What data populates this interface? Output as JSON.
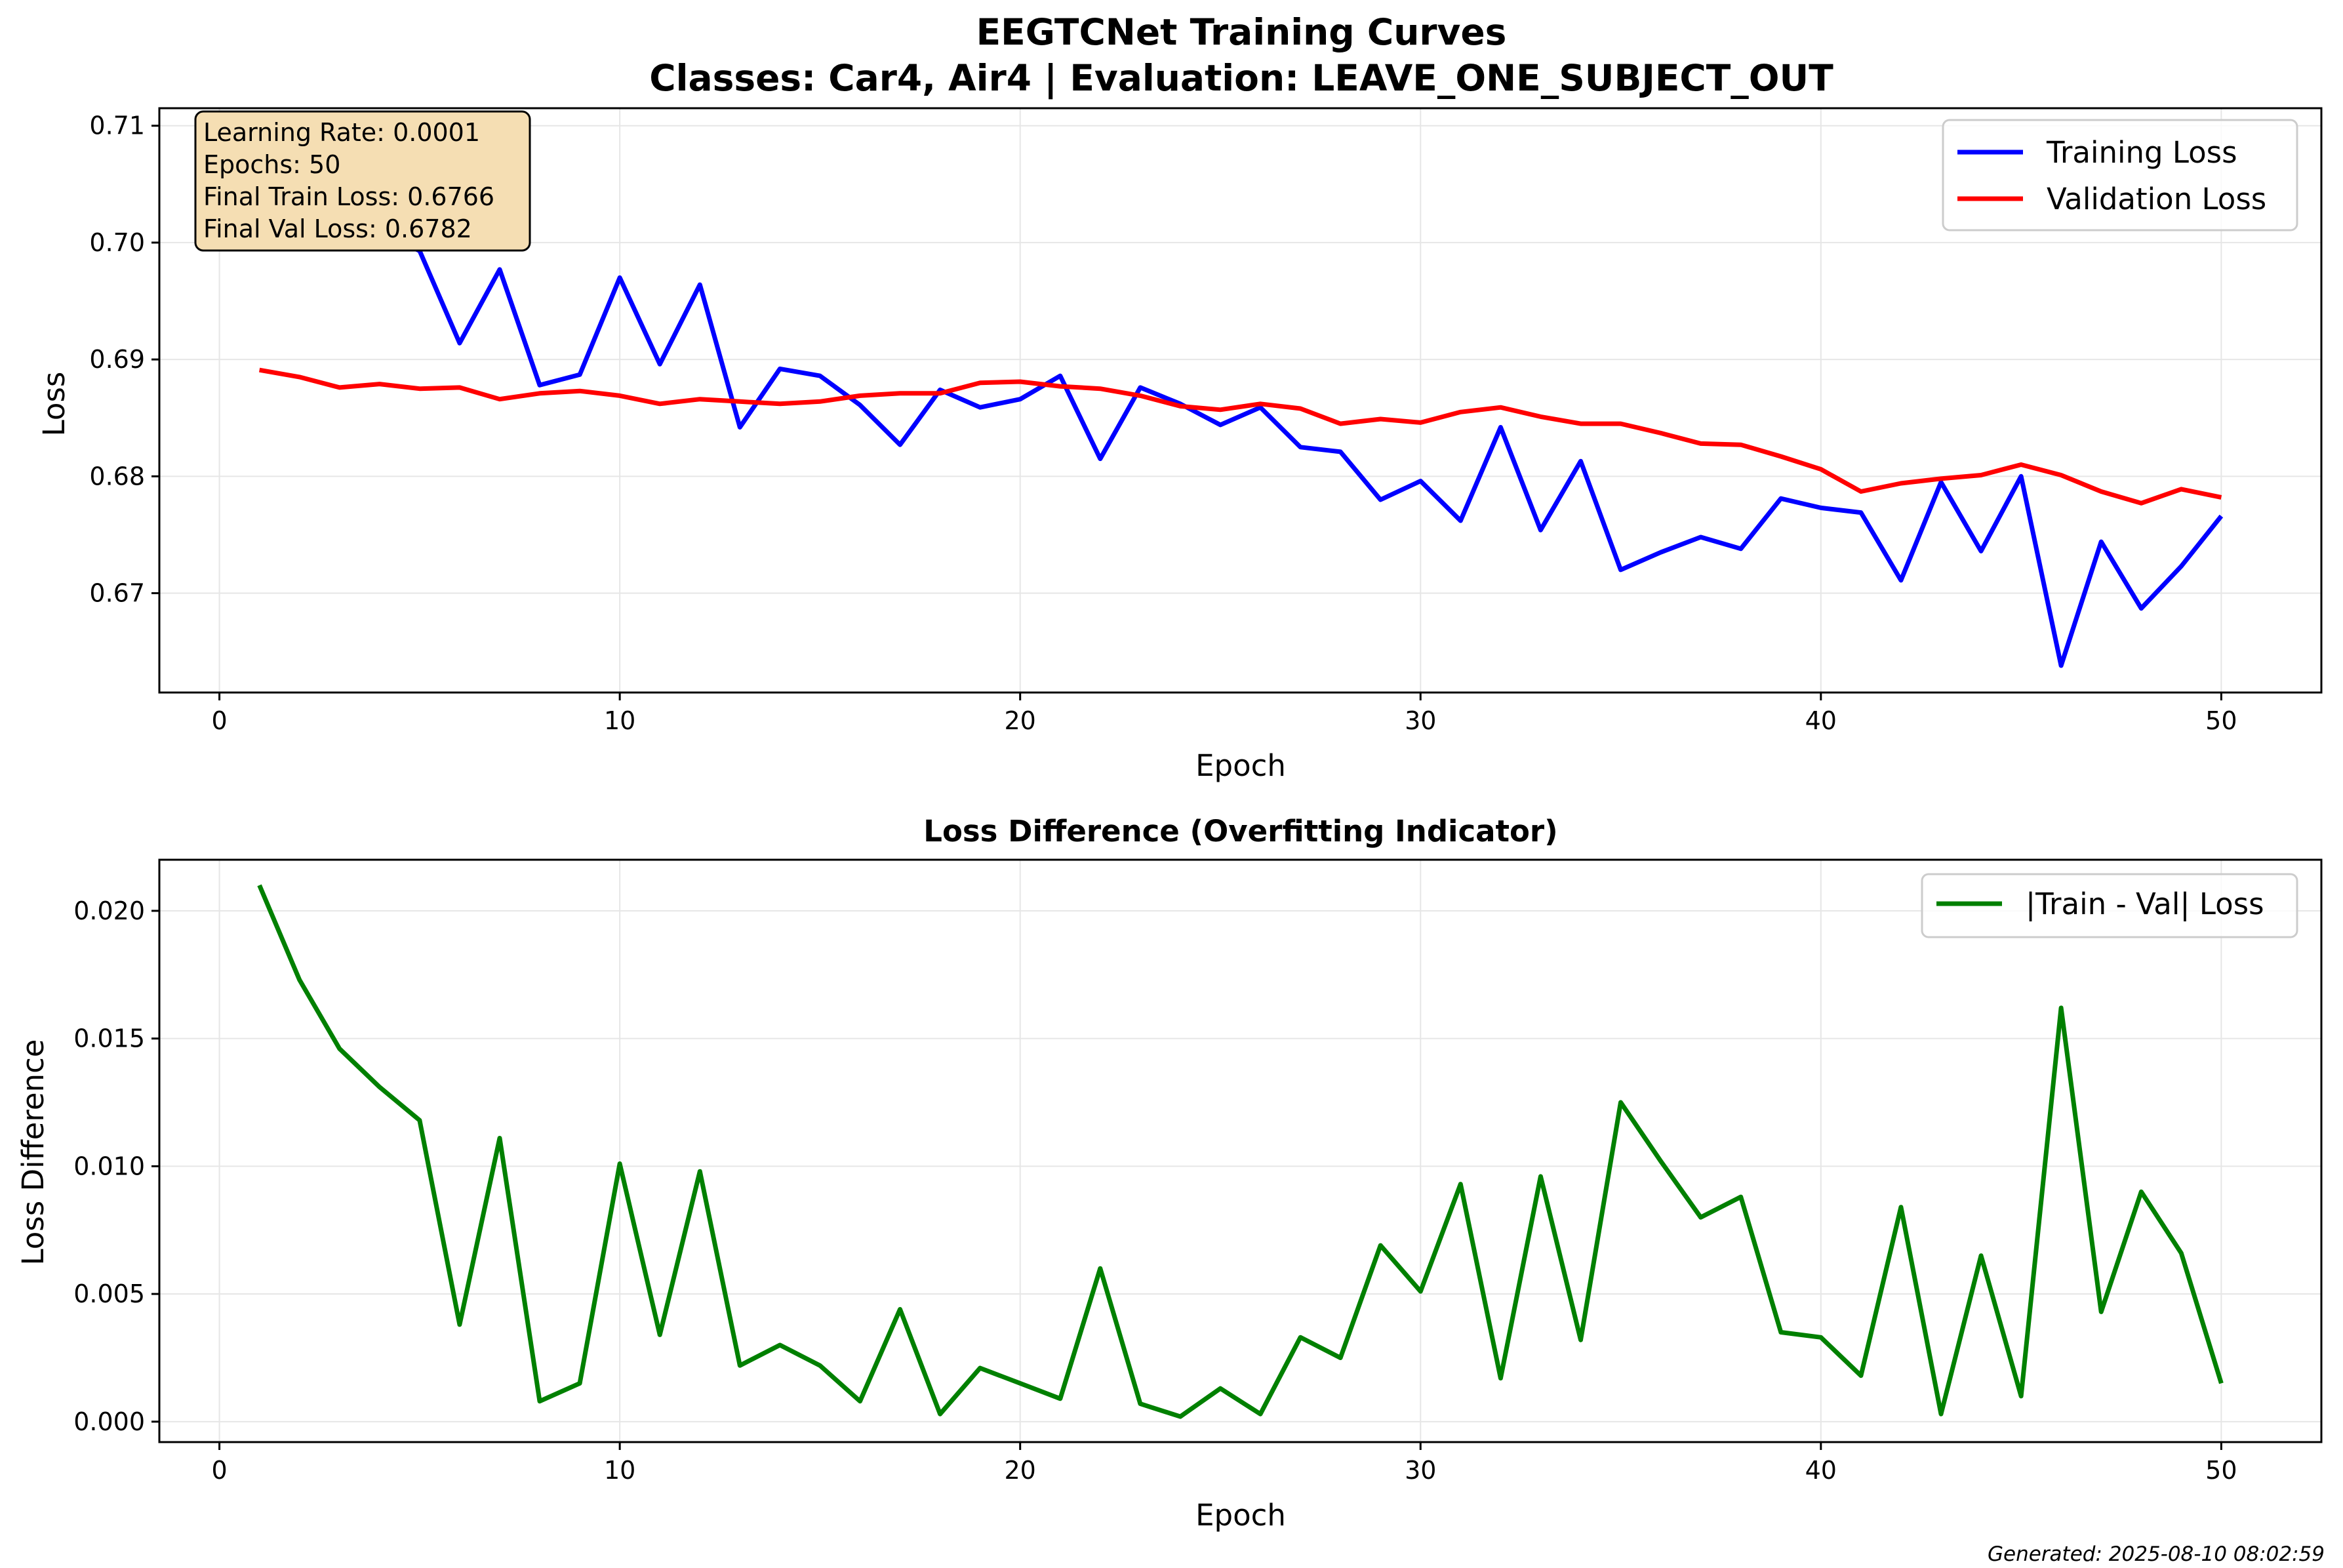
{
  "title": "EEGTCNet Training Curves",
  "subtitle": "Classes: Car4, Air4 | Evaluation: LEAVE_ONE_SUBJECT_OUT",
  "info_box": [
    "Learning Rate: 0.0001",
    "Epochs: 50",
    "Final Train Loss: 0.6766",
    "Final Val Loss: 0.6782"
  ],
  "footer": "Generated: 2025-08-10 08:02:59",
  "colors": {
    "train": "#0000ff",
    "val": "#ff0000",
    "diff": "#008000",
    "info_box": "#f5deb3",
    "grid": "#e6e6e6"
  },
  "chart_data": [
    {
      "type": "line",
      "xlabel": "Epoch",
      "ylabel": "Loss",
      "xlim": [
        -1.5,
        52.5
      ],
      "ylim": [
        0.6615,
        0.7115
      ],
      "xticks": [
        0,
        10,
        20,
        30,
        40,
        50
      ],
      "xtick_labels": [
        "0",
        "10",
        "20",
        "30",
        "40",
        "50"
      ],
      "yticks": [
        0.67,
        0.68,
        0.69,
        0.7,
        0.71
      ],
      "ytick_labels": [
        "0.67",
        "0.68",
        "0.69",
        "0.70",
        "0.71"
      ],
      "grid": true,
      "legend_position": "top-right",
      "x": [
        1,
        2,
        3,
        4,
        5,
        6,
        7,
        8,
        9,
        10,
        11,
        12,
        13,
        14,
        15,
        16,
        17,
        18,
        19,
        20,
        21,
        22,
        23,
        24,
        25,
        26,
        27,
        28,
        29,
        30,
        31,
        32,
        33,
        34,
        35,
        36,
        37,
        38,
        39,
        40,
        41,
        42,
        43,
        44,
        45,
        46,
        47,
        48,
        49,
        50
      ],
      "series": [
        {
          "name": "Training Loss",
          "color": "#0000ff",
          "values": [
            0.71,
            0.7057,
            0.7022,
            0.7008,
            0.6993,
            0.6914,
            0.6977,
            0.6878,
            0.6887,
            0.697,
            0.6896,
            0.6964,
            0.6842,
            0.6892,
            0.6886,
            0.6861,
            0.6827,
            0.6874,
            0.6859,
            0.6866,
            0.6886,
            0.6815,
            0.6876,
            0.6862,
            0.6844,
            0.6859,
            0.6825,
            0.6821,
            0.678,
            0.6796,
            0.6762,
            0.6842,
            0.6754,
            0.6813,
            0.672,
            0.6735,
            0.6748,
            0.6738,
            0.6781,
            0.6773,
            0.6769,
            0.6711,
            0.6795,
            0.6736,
            0.68,
            0.6638,
            0.6744,
            0.6687,
            0.6723,
            0.6766
          ]
        },
        {
          "name": "Validation Loss",
          "color": "#ff0000",
          "values": [
            0.6891,
            0.6885,
            0.6876,
            0.6879,
            0.6875,
            0.6876,
            0.6866,
            0.6871,
            0.6873,
            0.6869,
            0.6862,
            0.6866,
            0.6864,
            0.6862,
            0.6864,
            0.6869,
            0.6871,
            0.6871,
            0.688,
            0.6881,
            0.6877,
            0.6875,
            0.6869,
            0.686,
            0.6857,
            0.6862,
            0.6858,
            0.6845,
            0.6849,
            0.6846,
            0.6855,
            0.6859,
            0.6851,
            0.6845,
            0.6845,
            0.6837,
            0.6828,
            0.6827,
            0.6817,
            0.6806,
            0.6787,
            0.6794,
            0.6798,
            0.6801,
            0.681,
            0.6801,
            0.6787,
            0.6777,
            0.6789,
            0.6782
          ]
        }
      ]
    },
    {
      "type": "line",
      "title": "Loss Difference (Overfitting Indicator)",
      "xlabel": "Epoch",
      "ylabel": "Loss Difference",
      "xlim": [
        -1.5,
        52.5
      ],
      "ylim": [
        -0.0008,
        0.022
      ],
      "xticks": [
        0,
        10,
        20,
        30,
        40,
        50
      ],
      "xtick_labels": [
        "0",
        "10",
        "20",
        "30",
        "40",
        "50"
      ],
      "yticks": [
        0.0,
        0.005,
        0.01,
        0.015,
        0.02
      ],
      "ytick_labels": [
        "0.000",
        "0.005",
        "0.010",
        "0.015",
        "0.020"
      ],
      "grid": true,
      "legend_position": "top-right",
      "x": [
        1,
        2,
        3,
        4,
        5,
        6,
        7,
        8,
        9,
        10,
        11,
        12,
        13,
        14,
        15,
        16,
        17,
        18,
        19,
        20,
        21,
        22,
        23,
        24,
        25,
        26,
        27,
        28,
        29,
        30,
        31,
        32,
        33,
        34,
        35,
        36,
        37,
        38,
        39,
        40,
        41,
        42,
        43,
        44,
        45,
        46,
        47,
        48,
        49,
        50
      ],
      "series": [
        {
          "name": "|Train - Val| Loss",
          "color": "#008000",
          "values": [
            0.021,
            0.0173,
            0.0146,
            0.0131,
            0.0118,
            0.0038,
            0.0111,
            0.0008,
            0.0015,
            0.0101,
            0.0034,
            0.0098,
            0.0022,
            0.003,
            0.0022,
            0.0008,
            0.0044,
            0.0003,
            0.0021,
            0.0015,
            0.0009,
            0.006,
            0.0007,
            0.0002,
            0.0013,
            0.0003,
            0.0033,
            0.0025,
            0.0069,
            0.0051,
            0.0093,
            0.0017,
            0.0096,
            0.0032,
            0.0125,
            0.0102,
            0.008,
            0.0088,
            0.0035,
            0.0033,
            0.0018,
            0.0084,
            0.0003,
            0.0065,
            0.001,
            0.0162,
            0.0043,
            0.009,
            0.0066,
            0.0015
          ]
        }
      ]
    }
  ]
}
